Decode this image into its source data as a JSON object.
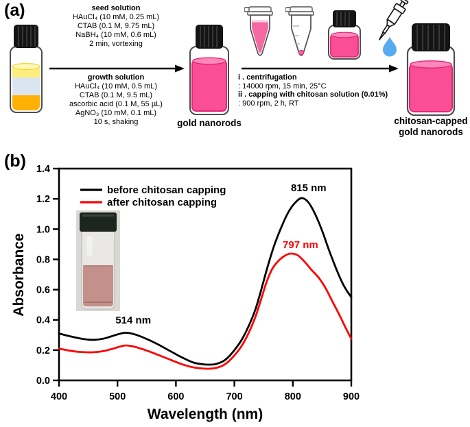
{
  "panel_a": {
    "label": "(a)",
    "seed_block": {
      "title": "seed solution",
      "lines": [
        "HAuCl₄ (10 mM, 0.25 mL)",
        "CTAB (0.1 M, 9.75 mL)",
        "NaBH₄ (10 mM, 0.6 mL)",
        "2 min, vortexing"
      ]
    },
    "growth_block": {
      "title": "growth solution",
      "lines": [
        "HAuCl₄ (10 mM, 0.5 mL)",
        "CTAB (0.1 M, 9.5 mL)",
        "ascorbic acid (0.1 M, 55 µL)",
        "AgNO₃ (10 mM, 0.1 mL)",
        "10 s, shaking"
      ]
    },
    "steps_block": {
      "step1_label": "i . centrifugation",
      "step1_detail": ": 14000 rpm, 15 min, 25°C",
      "step2_label": "ii . capping with chitosan solution (0.01%)",
      "step2_detail": ": 900 rpm, 2 h, RT"
    },
    "intermediate_label": "gold nanorods",
    "product_label_line1": "chitosan-capped",
    "product_label_line2": "gold nanorods",
    "colors": {
      "nanorod_pink": "#fb4f95",
      "pink_outline": "#e12774",
      "seed_yellow": "#ffee7d",
      "seed_blue": "#dbe5f2",
      "seed_orange": "#ffb005",
      "droplet_blue": "#57aaf0"
    }
  },
  "panel_b": {
    "label": "(b)"
  },
  "chart_data": {
    "type": "line",
    "title": "",
    "xlabel": "Wavelength (nm)",
    "ylabel": "Absorbance",
    "xlim": [
      400,
      900
    ],
    "ylim": [
      0.0,
      1.4
    ],
    "xticks": [
      400,
      500,
      600,
      700,
      800,
      900
    ],
    "yticks": [
      "0.0",
      "0.2",
      "0.4",
      "0.6",
      "0.8",
      "1.0",
      "1.2",
      "1.4"
    ],
    "grid": false,
    "legend_position": "top-left-inside",
    "series": [
      {
        "id": "before",
        "name": "before chitosan capping",
        "color": "#000000",
        "x": [
          400,
          415,
          430,
          445,
          460,
          475,
          490,
          502,
          514,
          526,
          540,
          555,
          570,
          585,
          600,
          615,
          630,
          645,
          656,
          668,
          680,
          690,
          700,
          712,
          724,
          736,
          746,
          756,
          768,
          780,
          792,
          804,
          815,
          826,
          838,
          850,
          862,
          874,
          884,
          892,
          900
        ],
        "y": [
          0.31,
          0.295,
          0.282,
          0.272,
          0.268,
          0.275,
          0.292,
          0.306,
          0.315,
          0.308,
          0.29,
          0.265,
          0.237,
          0.205,
          0.173,
          0.143,
          0.118,
          0.107,
          0.104,
          0.108,
          0.125,
          0.155,
          0.2,
          0.265,
          0.355,
          0.47,
          0.6,
          0.74,
          0.89,
          1.01,
          1.11,
          1.175,
          1.205,
          1.18,
          1.1,
          0.99,
          0.86,
          0.74,
          0.65,
          0.595,
          0.55
        ]
      },
      {
        "id": "after",
        "name": "after chitosan capping",
        "color": "#ff0000",
        "x": [
          400,
          415,
          430,
          445,
          460,
          475,
          490,
          502,
          514,
          526,
          540,
          555,
          570,
          585,
          600,
          615,
          630,
          645,
          656,
          668,
          680,
          690,
          700,
          712,
          724,
          736,
          746,
          756,
          766,
          778,
          788,
          797,
          808,
          820,
          832,
          844,
          856,
          868,
          880,
          890,
          900
        ],
        "y": [
          0.21,
          0.199,
          0.19,
          0.186,
          0.186,
          0.193,
          0.207,
          0.221,
          0.231,
          0.225,
          0.21,
          0.19,
          0.168,
          0.145,
          0.122,
          0.101,
          0.086,
          0.079,
          0.077,
          0.082,
          0.098,
          0.125,
          0.165,
          0.225,
          0.31,
          0.42,
          0.54,
          0.66,
          0.745,
          0.8,
          0.828,
          0.838,
          0.828,
          0.785,
          0.73,
          0.68,
          0.61,
          0.52,
          0.43,
          0.35,
          0.275
        ]
      }
    ],
    "annotations": [
      {
        "text": "514 nm",
        "x": 527,
        "y": 0.375,
        "color": "#000000"
      },
      {
        "text": "815 nm",
        "x": 827,
        "y": 1.25,
        "color": "#000000"
      },
      {
        "text": "797 nm",
        "x": 813,
        "y": 0.875,
        "color": "#ff0000"
      }
    ]
  }
}
